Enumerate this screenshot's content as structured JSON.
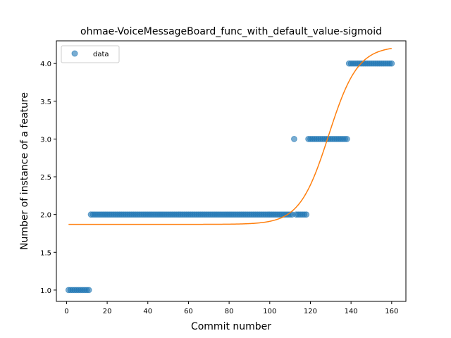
{
  "chart_data": {
    "type": "scatter",
    "title": "ohmae-VoiceMessageBoard_func_with_default_value-sigmoid",
    "xlabel": "Commit number",
    "ylabel": "Number of instance of a feature",
    "xlim": [
      -5,
      167
    ],
    "ylim": [
      0.85,
      4.3
    ],
    "xticks": [
      0,
      20,
      40,
      60,
      80,
      100,
      120,
      140,
      160
    ],
    "yticks": [
      1.0,
      1.5,
      2.0,
      2.5,
      3.0,
      3.5,
      4.0
    ],
    "ytick_labels": [
      "1.0",
      "1.5",
      "2.0",
      "2.5",
      "3.0",
      "3.5",
      "4.0"
    ],
    "legend": {
      "placement": "top-left",
      "entries": [
        "data"
      ]
    },
    "grid": false,
    "colors": {
      "data": "#1f77b4",
      "fit": "#ff7f0e"
    },
    "series": [
      {
        "name": "data",
        "kind": "scatter",
        "segments": [
          {
            "x_from": 1,
            "x_to": 11,
            "y": 1
          },
          {
            "x_from": 12,
            "x_to": 111,
            "y": 2
          },
          {
            "x_from": 112,
            "x_to": 112,
            "y": 3
          },
          {
            "x_from": 113,
            "x_to": 118,
            "y": 2
          },
          {
            "x_from": 119,
            "x_to": 138,
            "y": 3
          },
          {
            "x_from": 139,
            "x_to": 160,
            "y": 4
          }
        ]
      },
      {
        "kind": "line",
        "model": "sigmoid",
        "x_range": [
          1,
          160
        ],
        "params": {
          "lower": 1.87,
          "upper": 4.23,
          "midpoint": 129,
          "rate": 0.14
        }
      }
    ]
  }
}
